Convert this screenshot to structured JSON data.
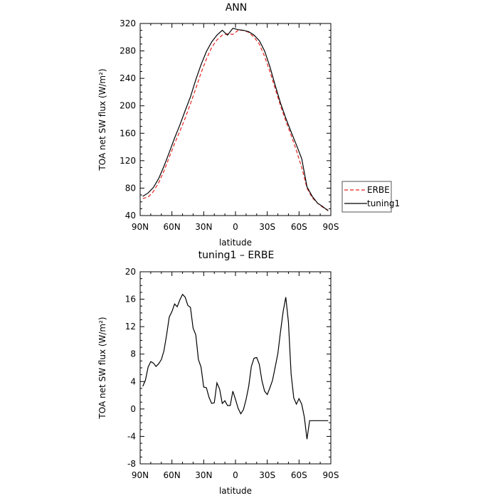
{
  "chart_data": [
    {
      "type": "line",
      "title": "ANN",
      "xlabel": "latitude",
      "ylabel": "TOA net SW flux (W/m²)",
      "xlim": [
        90,
        -90
      ],
      "ylim": [
        40,
        320
      ],
      "x_tick_labels": [
        "90N",
        "60N",
        "30N",
        "0",
        "30S",
        "60S",
        "90S"
      ],
      "y_tick_labels": [
        "40",
        "80",
        "120",
        "160",
        "200",
        "240",
        "280",
        "320"
      ],
      "grid": false,
      "legend_position": "right",
      "series": [
        {
          "name": "ERBE",
          "color": "#e8231f",
          "dash": "dashed",
          "x": [
            87.5,
            82.5,
            77.5,
            72.5,
            67.5,
            62.5,
            57.5,
            52.5,
            47.5,
            42.5,
            37.5,
            32.5,
            27.5,
            22.5,
            17.5,
            12.5,
            7.5,
            2.5,
            -2.5,
            -7.5,
            -12.5,
            -17.5,
            -22.5,
            -27.5,
            -32.5,
            -37.5,
            -42.5,
            -47.5,
            -52.5,
            -57.5,
            -62.5,
            -67.5,
            -72.5,
            -77.5,
            -82.5,
            -87.5
          ],
          "values": [
            65,
            67,
            75,
            88,
            105,
            125,
            145,
            163,
            182,
            203,
            225,
            248,
            268,
            285,
            296,
            303,
            305,
            304,
            310,
            310,
            307,
            300,
            290,
            272,
            250,
            225,
            200,
            178,
            157,
            135,
            110,
            80,
            66,
            58,
            52,
            48
          ]
        },
        {
          "name": "tuning1",
          "color": "#000000",
          "dash": "solid",
          "x": [
            87.5,
            82.5,
            77.5,
            72.5,
            67.5,
            62.5,
            57.5,
            52.5,
            47.5,
            42.5,
            37.5,
            32.5,
            27.5,
            22.5,
            17.5,
            12.5,
            7.5,
            2.5,
            -2.5,
            -7.5,
            -12.5,
            -17.5,
            -22.5,
            -27.5,
            -32.5,
            -37.5,
            -42.5,
            -47.5,
            -52.5,
            -57.5,
            -62.5,
            -67.5,
            -72.5,
            -77.5,
            -82.5,
            -87.5
          ],
          "values": [
            68,
            73,
            81,
            94,
            112,
            132,
            153,
            172,
            193,
            213,
            238,
            260,
            279,
            293,
            303,
            310,
            303,
            313,
            311,
            310,
            308,
            303,
            295,
            280,
            257,
            230,
            204,
            182,
            162,
            143,
            123,
            82,
            68,
            58,
            53,
            47
          ]
        }
      ]
    },
    {
      "type": "line",
      "title": "tuning1 – ERBE",
      "xlabel": "latitude",
      "ylabel": "TOA net SW flux (W/m²)",
      "xlim": [
        90,
        -90
      ],
      "ylim": [
        -8,
        20
      ],
      "x_tick_labels": [
        "90N",
        "60N",
        "30N",
        "0",
        "30S",
        "60S",
        "90S"
      ],
      "y_tick_labels": [
        "-8",
        "-4",
        "0",
        "4",
        "8",
        "12",
        "16",
        "20"
      ],
      "grid": false,
      "series": [
        {
          "color": "#000000",
          "dash": "solid",
          "x": [
            87.5,
            85,
            82.5,
            80,
            77.5,
            75,
            72.5,
            70,
            67.5,
            65,
            62.5,
            60,
            57.5,
            55,
            52.5,
            50,
            47.5,
            45,
            42.5,
            40,
            37.5,
            35,
            32.5,
            30,
            27.5,
            25,
            22.5,
            20,
            17.5,
            15,
            12.5,
            10,
            7.5,
            5,
            2.5,
            0,
            -2.5,
            -5,
            -7.5,
            -10,
            -12.5,
            -15,
            -17.5,
            -20,
            -22.5,
            -25,
            -27.5,
            -30,
            -32.5,
            -35,
            -37.5,
            -40,
            -42.5,
            -45,
            -47.5,
            -50,
            -52.5,
            -55,
            -57.5,
            -60,
            -62.5,
            -65,
            -67.5,
            -70,
            -72.5,
            -75,
            -77.5,
            -80,
            -82.5,
            -85,
            -87.5
          ],
          "values": [
            3.3,
            4.2,
            6.1,
            6.9,
            6.7,
            6.2,
            6.6,
            7.2,
            8.5,
            10.8,
            13.4,
            14.2,
            15.3,
            14.9,
            15.9,
            16.7,
            16.3,
            15.1,
            14.8,
            11.8,
            10.8,
            7.2,
            6.1,
            3.2,
            3.1,
            1.7,
            0.8,
            0.9,
            3.8,
            2.9,
            0.8,
            1.2,
            0.5,
            0.5,
            2.6,
            1.4,
            0.1,
            -0.7,
            -0.1,
            1.4,
            3.3,
            6.2,
            7.4,
            7.5,
            6.5,
            4.1,
            2.6,
            2.1,
            3.1,
            4.2,
            6.1,
            8.1,
            11.3,
            14.2,
            16.3,
            12.7,
            5.1,
            1.6,
            0.7,
            1.5,
            0.7,
            -1.2,
            -4.4,
            -1.7,
            -1.7,
            -1.7,
            -1.7,
            -1.7,
            -1.7,
            -1.7,
            -1.7
          ]
        }
      ]
    }
  ]
}
